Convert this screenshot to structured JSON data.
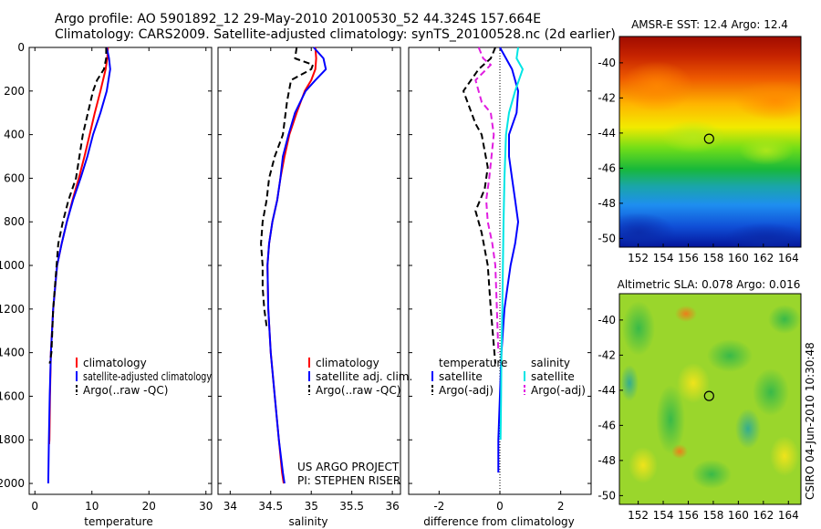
{
  "header": {
    "line1": "Argo profile: AO 5901892_12 29-May-2010 20100530_52 44.324S 157.664E",
    "line2": "Climatology: CARS2009. Satellite-adjusted climatology: synTS_20100528.nc (2d earlier)"
  },
  "footer": {
    "project": "US ARGO PROJECT",
    "pi": "PI: STEPHEN RISER",
    "stamp": "CSIRO 04-Jun-2010 10:30:48"
  },
  "colors": {
    "climatology": "#ff0000",
    "satellite": "#0000ff",
    "argo": "#000000",
    "sal_satellite": "#00e5e5",
    "sal_argo": "#e01ee0"
  },
  "chart_data": [
    {
      "type": "line",
      "xlabel": "temperature",
      "ylabel": "",
      "xlim": [
        -1,
        31
      ],
      "ylim": [
        2050,
        0
      ],
      "xticks": [
        0,
        10,
        20,
        30
      ],
      "yticks": [
        0,
        200,
        400,
        600,
        800,
        1000,
        1200,
        1400,
        1600,
        1800,
        2000
      ],
      "legend": {
        "placement": "lower-right",
        "labels": [
          "climatology",
          "satellite-adjusted climatology",
          "Argo(..raw -QC)"
        ]
      },
      "series": [
        {
          "name": "climatology",
          "style": "solid",
          "color": "#ff0000",
          "x": [
            12.8,
            12.7,
            12.4,
            11.5,
            10.5,
            9.6,
            8.7,
            7.7,
            6.6,
            5.6,
            4.7,
            3.9,
            3.2,
            2.8,
            2.65,
            2.55,
            2.5
          ],
          "y": [
            0,
            50,
            100,
            200,
            300,
            400,
            500,
            600,
            700,
            800,
            900,
            1000,
            1200,
            1400,
            1600,
            1800,
            1820
          ]
        },
        {
          "name": "satellite-adjusted climatology",
          "style": "solid",
          "color": "#0000ff",
          "x": [
            12.6,
            13.0,
            13.2,
            12.6,
            11.5,
            10.2,
            9.2,
            8.0,
            6.7,
            5.6,
            4.7,
            3.9,
            3.2,
            2.8,
            2.6,
            2.45,
            2.35
          ],
          "y": [
            0,
            50,
            100,
            200,
            300,
            400,
            500,
            600,
            700,
            800,
            900,
            1000,
            1200,
            1400,
            1600,
            1800,
            2000
          ]
        },
        {
          "name": "Argo(..raw -QC)",
          "style": "dash",
          "color": "#000000",
          "x": [
            12.5,
            12.5,
            12.1,
            10.9,
            10.2,
            9.3,
            8.4,
            7.2,
            5.9,
            4.9,
            4.1,
            3.2,
            2.9,
            2.6
          ],
          "y": [
            0,
            50,
            100,
            150,
            200,
            300,
            400,
            600,
            700,
            800,
            900,
            1200,
            1400,
            1450
          ]
        }
      ]
    },
    {
      "type": "line",
      "xlabel": "salinity",
      "ylabel": "",
      "xlim": [
        33.85,
        36.1
      ],
      "ylim": [
        2050,
        0
      ],
      "xticks": [
        34,
        34.5,
        35,
        35.5,
        36
      ],
      "legend": {
        "placement": "lower-right",
        "labels": [
          "climatology",
          "satellite adj. clim.",
          "Argo(..raw -QC)"
        ]
      },
      "series": [
        {
          "name": "climatology",
          "style": "solid",
          "color": "#ff0000",
          "x": [
            35.05,
            35.06,
            35.05,
            35.0,
            34.92,
            34.82,
            34.73,
            34.67,
            34.62,
            34.58,
            34.52,
            34.48,
            34.46,
            34.47,
            34.5,
            34.55,
            34.6,
            34.64,
            34.66
          ],
          "y": [
            0,
            50,
            100,
            150,
            200,
            300,
            400,
            500,
            600,
            700,
            800,
            900,
            1000,
            1200,
            1400,
            1600,
            1800,
            1950,
            2000
          ]
        },
        {
          "name": "satellite adj. clim.",
          "style": "solid",
          "color": "#0000ff",
          "x": [
            35.03,
            35.15,
            35.18,
            35.05,
            34.93,
            34.8,
            34.72,
            34.65,
            34.62,
            34.58,
            34.52,
            34.48,
            34.46,
            34.47,
            34.5,
            34.55,
            34.6,
            34.65,
            34.67
          ],
          "y": [
            0,
            50,
            100,
            150,
            200,
            300,
            400,
            500,
            600,
            700,
            800,
            900,
            1000,
            1200,
            1400,
            1600,
            1800,
            1950,
            2000
          ]
        },
        {
          "name": "Argo(..raw -QC)",
          "style": "dash",
          "color": "#000000",
          "x": [
            34.82,
            34.8,
            35.02,
            35.0,
            34.75,
            34.7,
            34.65,
            34.55,
            34.48,
            34.45,
            34.4,
            34.38,
            34.4,
            34.4,
            34.42,
            34.45
          ],
          "y": [
            0,
            50,
            80,
            100,
            150,
            250,
            400,
            500,
            600,
            700,
            800,
            900,
            1000,
            1100,
            1200,
            1280
          ]
        }
      ]
    },
    {
      "type": "line",
      "xlabel": "difference from climatology",
      "ylabel": "",
      "xlim": [
        -3,
        3
      ],
      "ylim": [
        2050,
        0
      ],
      "xticks": [
        -2,
        0,
        2
      ],
      "legend": {
        "placement": "lower-right",
        "columns": [
          {
            "title": "temperature",
            "labels": [
              "satellite",
              "Argo(-adj)"
            ]
          },
          {
            "title": "salinity",
            "labels": [
              "satellite",
              "Argo(-adj)"
            ]
          }
        ]
      },
      "series": [
        {
          "name": "temperature satellite",
          "style": "solid",
          "color": "#0000ff",
          "x": [
            0.0,
            0.2,
            0.4,
            0.6,
            0.55,
            0.3,
            0.3,
            0.4,
            0.5,
            0.6,
            0.5,
            0.35,
            0.25,
            0.15,
            0.05,
            0.0,
            -0.05,
            -0.05
          ],
          "y": [
            0,
            50,
            100,
            200,
            300,
            400,
            500,
            600,
            700,
            800,
            900,
            1000,
            1100,
            1200,
            1400,
            1600,
            1800,
            1950
          ]
        },
        {
          "name": "temperature Argo(-adj)",
          "style": "dash",
          "color": "#000000",
          "x": [
            -0.15,
            -0.3,
            -0.7,
            -1.2,
            -0.8,
            -0.6,
            -0.4,
            -0.5,
            -0.8,
            -0.6,
            -0.4,
            -0.3,
            -0.15
          ],
          "y": [
            0,
            50,
            100,
            200,
            350,
            400,
            550,
            650,
            750,
            850,
            1000,
            1200,
            1450
          ]
        },
        {
          "name": "salinity satellite",
          "style": "solid",
          "color": "#00e5e5",
          "x": [
            0.6,
            0.55,
            0.75,
            0.5,
            0.3,
            0.2,
            0.15,
            0.12,
            0.1,
            0.08,
            0.05,
            0.04,
            0.02
          ],
          "y": [
            0,
            50,
            100,
            200,
            300,
            400,
            600,
            800,
            1000,
            1200,
            1400,
            1600,
            1800
          ]
        },
        {
          "name": "salinity Argo(-adj)",
          "style": "dash",
          "color": "#e01ee0",
          "x": [
            -0.7,
            -0.55,
            -0.3,
            -0.8,
            -0.6,
            -0.3,
            -0.2,
            -0.35,
            -0.45,
            -0.4,
            -0.25,
            -0.15,
            -0.1,
            -0.05
          ],
          "y": [
            0,
            50,
            80,
            150,
            250,
            300,
            400,
            600,
            700,
            800,
            900,
            1000,
            1200,
            1400
          ]
        }
      ]
    },
    {
      "type": "heatmap",
      "title": "AMSR-E SST: 12.4 Argo: 12.4",
      "xlim": [
        150.5,
        165
      ],
      "ylim": [
        -50.5,
        -38.5
      ],
      "xticks": [
        152,
        154,
        156,
        158,
        160,
        162,
        164
      ],
      "yticks": [
        -40,
        -42,
        -44,
        -46,
        -48,
        -50
      ],
      "marker": {
        "lon": 157.664,
        "lat": -44.324
      }
    },
    {
      "type": "heatmap",
      "title": "Altimetric SLA: 0.078 Argo: 0.016",
      "xlim": [
        150.5,
        165
      ],
      "ylim": [
        -50.5,
        -38.5
      ],
      "xticks": [
        152,
        154,
        156,
        158,
        160,
        162,
        164
      ],
      "yticks": [
        -40,
        -42,
        -44,
        -46,
        -48,
        -50
      ],
      "marker": {
        "lon": 157.664,
        "lat": -44.324
      }
    }
  ]
}
